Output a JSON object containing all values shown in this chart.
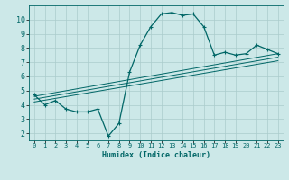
{
  "xlabel": "Humidex (Indice chaleur)",
  "bg_color": "#cce8e8",
  "grid_color": "#aacccc",
  "line_color": "#006666",
  "xlim": [
    -0.5,
    23.5
  ],
  "ylim": [
    1.5,
    11.0
  ],
  "xticks": [
    0,
    1,
    2,
    3,
    4,
    5,
    6,
    7,
    8,
    9,
    10,
    11,
    12,
    13,
    14,
    15,
    16,
    17,
    18,
    19,
    20,
    21,
    22,
    23
  ],
  "yticks": [
    2,
    3,
    4,
    5,
    6,
    7,
    8,
    9,
    10
  ],
  "main_x": [
    0,
    1,
    2,
    3,
    4,
    5,
    6,
    7,
    8,
    9,
    10,
    11,
    12,
    13,
    14,
    15,
    16,
    17,
    18,
    19,
    20,
    21,
    22,
    23
  ],
  "main_y": [
    4.7,
    4.0,
    4.3,
    3.7,
    3.5,
    3.5,
    3.7,
    1.8,
    2.7,
    6.3,
    8.2,
    9.5,
    10.4,
    10.5,
    10.3,
    10.4,
    9.5,
    7.5,
    7.7,
    7.5,
    7.6,
    8.2,
    7.9,
    7.6
  ],
  "line1_x": [
    0,
    23
  ],
  "line1_y": [
    4.2,
    7.1
  ],
  "line2_x": [
    0,
    23
  ],
  "line2_y": [
    4.4,
    7.35
  ],
  "line3_x": [
    0,
    23
  ],
  "line3_y": [
    4.6,
    7.6
  ]
}
